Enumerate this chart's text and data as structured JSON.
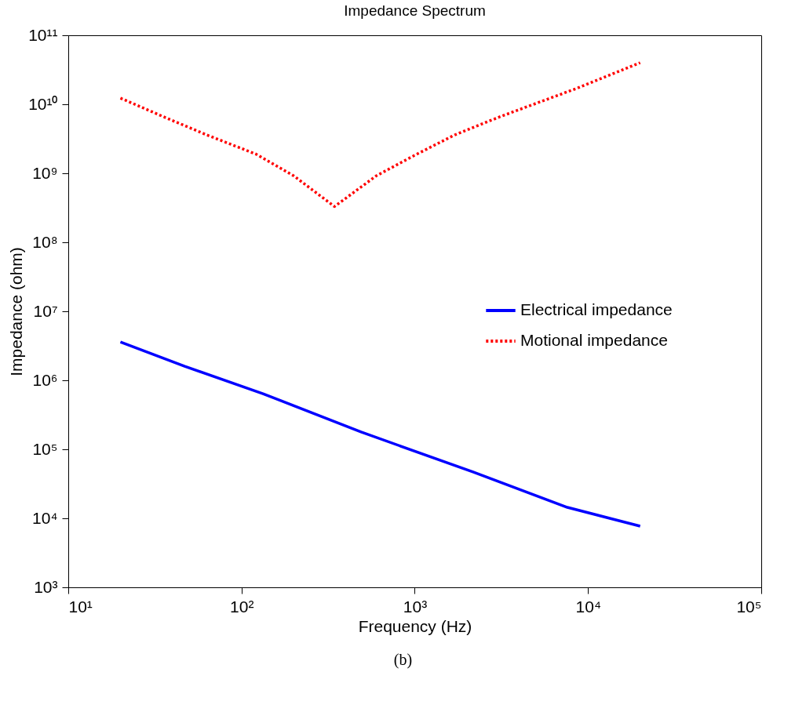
{
  "chart_data": {
    "type": "line",
    "title": "Impedance Spectrum",
    "xlabel": "Frequency (Hz)",
    "ylabel": "Impedance (ohm)",
    "log": "xy",
    "grid": false,
    "legend": "right",
    "xlim": [
      10,
      100000
    ],
    "ylim": [
      1000,
      100000000000
    ],
    "xticks": [
      {
        "value": 10,
        "label": "10¹"
      },
      {
        "value": 100,
        "label": "10²"
      },
      {
        "value": 1000,
        "label": "10³"
      },
      {
        "value": 10000,
        "label": "10⁴"
      },
      {
        "value": 100000,
        "label": "10⁵"
      }
    ],
    "yticks": [
      {
        "value": 1000,
        "label": "10³"
      },
      {
        "value": 10000,
        "label": "10⁴"
      },
      {
        "value": 100000,
        "label": "10⁵"
      },
      {
        "value": 1000000,
        "label": "10⁶"
      },
      {
        "value": 10000000,
        "label": "10⁷"
      },
      {
        "value": 100000000,
        "label": "10⁸"
      },
      {
        "value": 1000000000,
        "label": "10⁹"
      },
      {
        "value": 10000000000,
        "label": "10¹⁰"
      },
      {
        "value": 100000000000,
        "label": "10¹¹"
      }
    ],
    "series": [
      {
        "name": "Electrical impedance",
        "color": "#0000ff",
        "line_style": "solid",
        "x": [
          20,
          47,
          133,
          490,
          2170,
          7600,
          20000
        ],
        "values": [
          3600000,
          1600000,
          640000,
          178000,
          47000,
          14400,
          7700
        ]
      },
      {
        "name": "Motional impedance",
        "color": "#ff0000",
        "line_style": "dotted",
        "x": [
          20,
          36.5,
          63,
          121,
          200,
          344,
          600,
          1030,
          1700,
          3100,
          5900,
          8600,
          20000
        ],
        "values": [
          12300000000,
          6400000000,
          3600000000,
          1900000000,
          920000000,
          330000000,
          920000000,
          1900000000,
          3600000000,
          6600000000,
          12000000000,
          17000000000,
          40000000000
        ]
      }
    ],
    "annotations": [
      "(b)"
    ]
  }
}
